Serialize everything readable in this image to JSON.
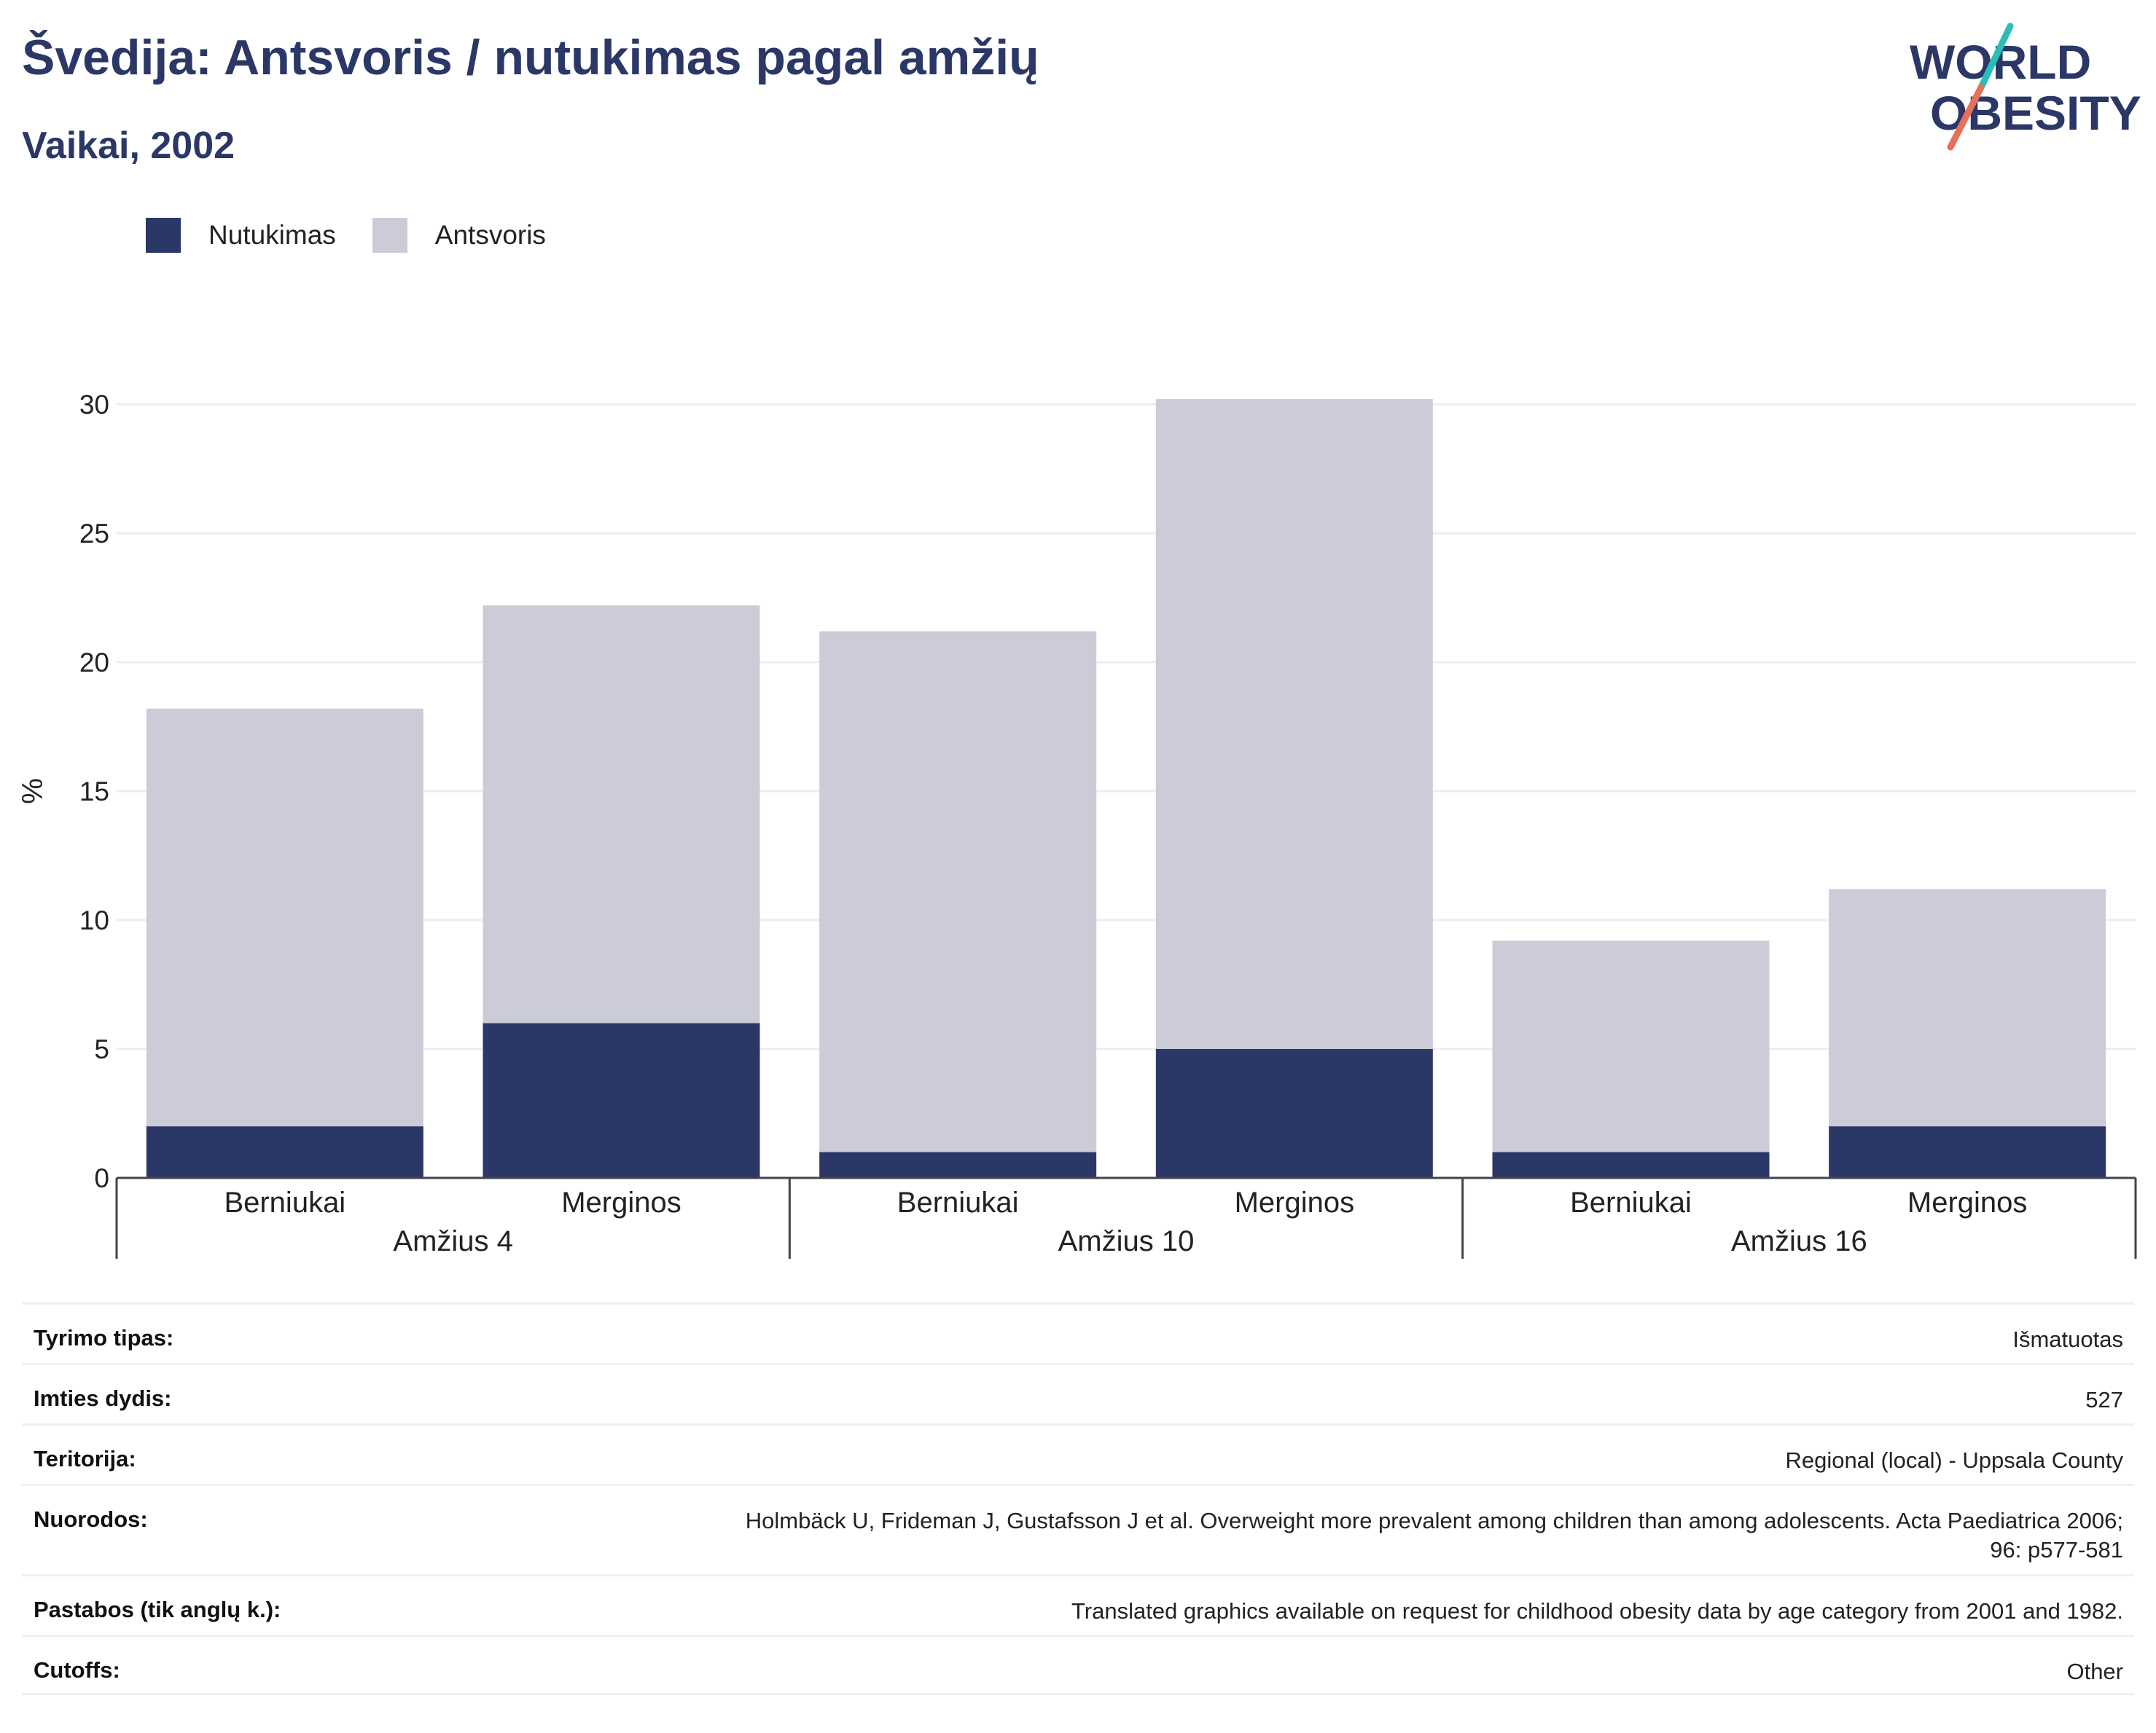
{
  "header": {
    "title": "Švedija: Antsvoris / nutukimas pagal amžių",
    "subtitle": "Vaikai, 2002"
  },
  "logo": {
    "line1": "WORLD",
    "line2": "OBESITY",
    "accent_colors": [
      "#2bbdb8",
      "#e8705a"
    ]
  },
  "colors": {
    "obesity": "#2a3767",
    "overweight": "#cbccd8",
    "grid": "#ecedf2",
    "text_dark": "#2a3767"
  },
  "legend": [
    {
      "label": "Nutukimas",
      "color": "#2a3767"
    },
    {
      "label": "Antsvoris",
      "color": "#cbccd8"
    }
  ],
  "chart_data": {
    "type": "bar",
    "stacked": true,
    "ylabel": "%",
    "ylim": [
      0,
      30
    ],
    "yticks": [
      0,
      5,
      10,
      15,
      20,
      25,
      30
    ],
    "grid": true,
    "legend_position": "top-left",
    "groups": [
      {
        "label": "Amžius 4",
        "categories": [
          "Berniukai",
          "Merginos"
        ]
      },
      {
        "label": "Amžius 10",
        "categories": [
          "Berniukai",
          "Merginos"
        ]
      },
      {
        "label": "Amžius 16",
        "categories": [
          "Berniukai",
          "Merginos"
        ]
      }
    ],
    "series": [
      {
        "name": "Nutukimas",
        "color": "#2a3767",
        "values": [
          2,
          6,
          1,
          5,
          1,
          2
        ]
      },
      {
        "name": "Antsvoris",
        "color": "#cbccd8",
        "values": [
          16.2,
          16.2,
          20.2,
          25.2,
          8.2,
          9.2
        ]
      }
    ]
  },
  "info_table": [
    {
      "label": "Tyrimo tipas:",
      "value": [
        "Išmatuotas"
      ]
    },
    {
      "label": "Imties dydis:",
      "value": [
        "527"
      ]
    },
    {
      "label": "Teritorija:",
      "value": [
        "Regional (local) - Uppsala County"
      ]
    },
    {
      "label": "Nuorodos:",
      "value": [
        "Holmbäck U, Frideman J, Gustafsson J et al. Overweight more prevalent among children than among adolescents. Acta Paediatrica 2006;",
        "96: p577-581"
      ]
    },
    {
      "label": "Pastabos (tik anglų k.):",
      "value": [
        "Translated graphics available on request for childhood obesity data by age category from 2001 and 1982."
      ]
    },
    {
      "label": "Cutoffs:",
      "value": [
        "Other"
      ]
    }
  ]
}
